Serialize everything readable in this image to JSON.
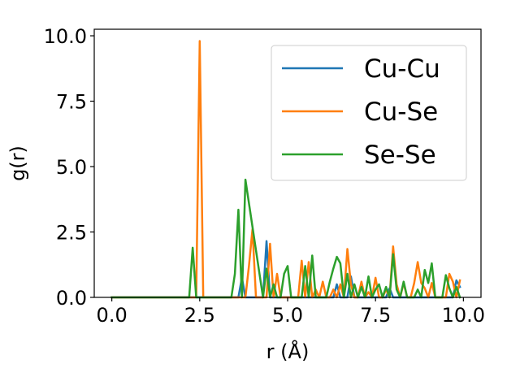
{
  "chart_data": {
    "type": "line",
    "xlabel": "r (Å)",
    "ylabel": "g(r)",
    "xlim": [
      -0.5,
      10.5
    ],
    "ylim": [
      0,
      10.25
    ],
    "xticks": [
      0.0,
      2.5,
      5.0,
      7.5,
      10.0
    ],
    "xtick_labels": [
      "0.0",
      "2.5",
      "5.0",
      "7.5",
      "10.0"
    ],
    "yticks": [
      0.0,
      2.5,
      5.0,
      7.5,
      10.0
    ],
    "ytick_labels": [
      "0.0",
      "2.5",
      "5.0",
      "7.5",
      "10.0"
    ],
    "grid": false,
    "legend_position": "top-right",
    "series": [
      {
        "name": "Cu-Cu",
        "color": "#1f77b4",
        "x": [
          0.0,
          3.6,
          3.7,
          3.8,
          4.3,
          4.4,
          4.5,
          6.3,
          6.4,
          6.5,
          6.7,
          6.8,
          6.9,
          7.8,
          7.9,
          8.0,
          8.1,
          9.7,
          9.8,
          9.9
        ],
        "y": [
          0.0,
          0.0,
          0.75,
          0.0,
          0.0,
          2.15,
          0.0,
          0.0,
          0.5,
          0.0,
          0.0,
          0.8,
          0.0,
          0.0,
          0.35,
          0.0,
          0.0,
          0.0,
          0.65,
          0.4
        ]
      },
      {
        "name": "Cu-Se",
        "color": "#ff7f0e",
        "x": [
          0.0,
          2.4,
          2.5,
          2.6,
          3.8,
          3.9,
          4.0,
          4.1,
          4.4,
          4.5,
          4.6,
          4.7,
          4.8,
          5.3,
          5.4,
          5.5,
          5.6,
          5.7,
          5.8,
          5.9,
          6.0,
          6.1,
          6.2,
          6.3,
          6.4,
          6.5,
          6.6,
          6.7,
          6.8,
          6.9,
          7.0,
          7.1,
          7.2,
          7.3,
          7.4,
          7.5,
          7.6,
          7.7,
          7.8,
          7.9,
          8.0,
          8.1,
          8.2,
          8.3,
          8.4,
          8.5,
          8.6,
          8.7,
          8.8,
          8.9,
          9.0,
          9.1,
          9.2,
          9.3,
          9.4,
          9.5,
          9.6,
          9.7,
          9.8,
          9.9
        ],
        "y": [
          0.0,
          0.0,
          9.8,
          0.0,
          0.0,
          1.2,
          2.6,
          0.0,
          0.0,
          2.05,
          0.0,
          0.9,
          0.0,
          0.0,
          1.4,
          0.0,
          1.35,
          0.0,
          0.3,
          0.0,
          0.6,
          0.0,
          0.0,
          0.3,
          0.0,
          0.5,
          0.0,
          1.85,
          0.5,
          0.0,
          0.0,
          0.6,
          0.0,
          0.2,
          0.0,
          0.75,
          0.0,
          0.0,
          0.3,
          0.0,
          1.95,
          0.5,
          0.0,
          0.55,
          0.0,
          0.0,
          0.55,
          1.35,
          0.55,
          0.35,
          0.0,
          0.55,
          0.0,
          0.0,
          0.0,
          0.0,
          0.9,
          0.6,
          0.0,
          0.65
        ]
      },
      {
        "name": "Se-Se",
        "color": "#2ca02c",
        "x": [
          0.0,
          2.2,
          2.3,
          2.4,
          3.4,
          3.5,
          3.6,
          3.7,
          3.8,
          4.3,
          4.4,
          4.5,
          4.6,
          4.7,
          4.8,
          4.9,
          5.0,
          5.1,
          5.2,
          5.3,
          5.4,
          5.5,
          5.6,
          5.7,
          5.8,
          5.9,
          6.0,
          6.1,
          6.2,
          6.3,
          6.4,
          6.5,
          6.6,
          6.7,
          6.8,
          6.9,
          7.0,
          7.1,
          7.2,
          7.3,
          7.4,
          7.5,
          7.6,
          7.7,
          7.8,
          7.9,
          8.0,
          8.1,
          8.2,
          8.3,
          8.4,
          8.5,
          8.6,
          8.7,
          8.8,
          8.9,
          9.0,
          9.1,
          9.2,
          9.3,
          9.4,
          9.5,
          9.6,
          9.7,
          9.8,
          9.9
        ],
        "y": [
          0.0,
          0.0,
          1.9,
          0.0,
          0.0,
          0.9,
          3.35,
          0.0,
          4.5,
          0.0,
          1.1,
          0.0,
          0.5,
          0.0,
          0.0,
          0.9,
          1.2,
          0.0,
          0.0,
          0.0,
          0.0,
          1.2,
          0.0,
          1.6,
          0.0,
          0.0,
          0.0,
          0.0,
          0.6,
          1.1,
          1.55,
          1.3,
          0.0,
          0.9,
          0.0,
          0.5,
          0.0,
          0.4,
          0.0,
          0.8,
          0.0,
          0.3,
          0.5,
          0.0,
          0.4,
          0.0,
          1.65,
          0.3,
          0.0,
          0.6,
          0.0,
          0.0,
          0.0,
          0.3,
          0.0,
          1.05,
          0.55,
          1.3,
          0.0,
          0.0,
          0.0,
          0.85,
          0.35,
          0.0,
          0.4,
          0.0
        ]
      }
    ]
  }
}
